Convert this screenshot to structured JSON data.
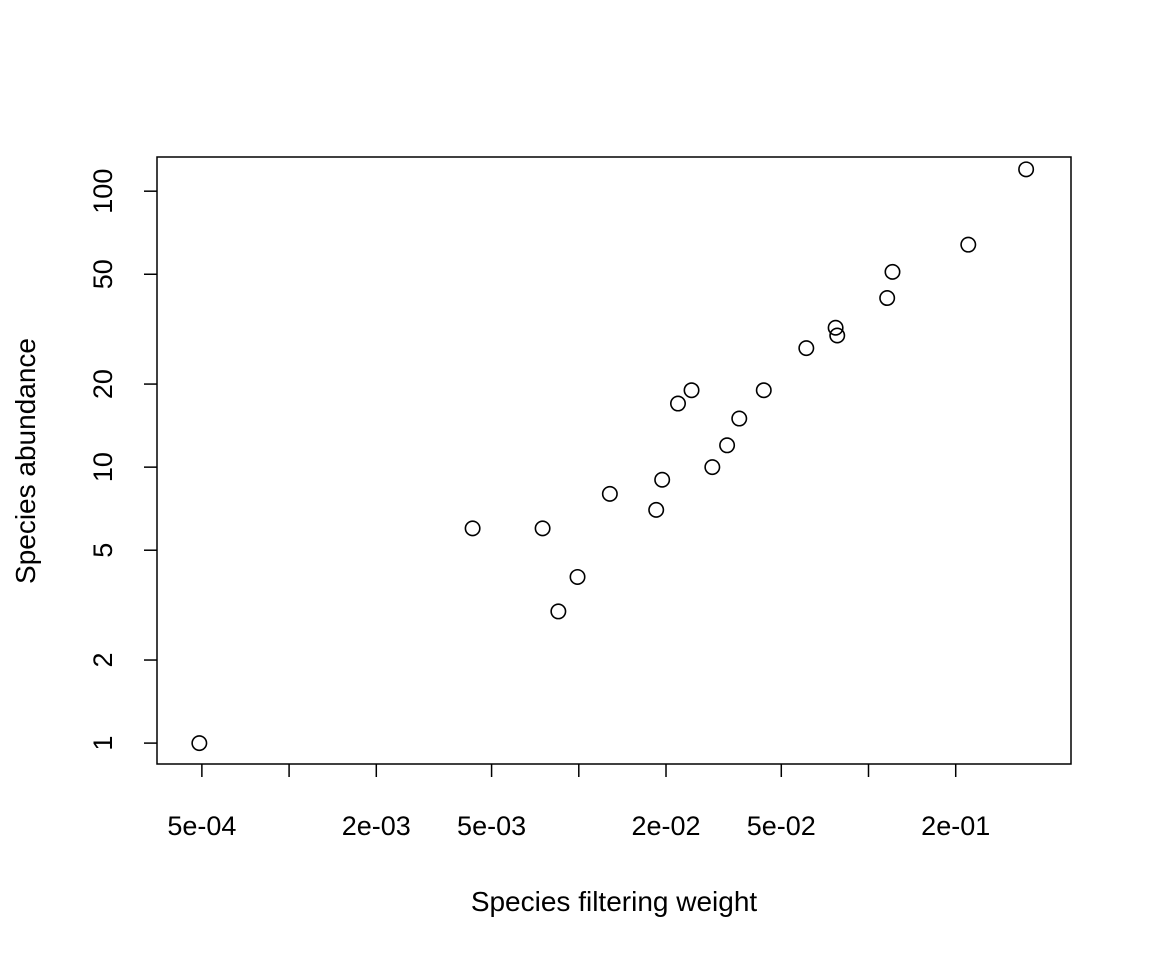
{
  "chart_data": {
    "type": "scatter",
    "title": "",
    "xlabel": "Species filtering weight",
    "ylabel": "Species abundance",
    "xscale": "log",
    "yscale": "log",
    "xlim": [
      0.00035,
      0.5
    ],
    "ylim": [
      0.84,
      133
    ],
    "grid": false,
    "legend": "none",
    "x_ticks": [
      {
        "value": 0.0005,
        "label": "5e-04"
      },
      {
        "value": 0.001,
        "label": ""
      },
      {
        "value": 0.002,
        "label": "2e-03"
      },
      {
        "value": 0.005,
        "label": "5e-03"
      },
      {
        "value": 0.01,
        "label": ""
      },
      {
        "value": 0.02,
        "label": "2e-02"
      },
      {
        "value": 0.05,
        "label": "5e-02"
      },
      {
        "value": 0.1,
        "label": ""
      },
      {
        "value": 0.2,
        "label": "2e-01"
      }
    ],
    "y_ticks": [
      {
        "value": 1,
        "label": "1"
      },
      {
        "value": 2,
        "label": "2"
      },
      {
        "value": 5,
        "label": "5"
      },
      {
        "value": 10,
        "label": "10"
      },
      {
        "value": 20,
        "label": "20"
      },
      {
        "value": 50,
        "label": "50"
      },
      {
        "value": 100,
        "label": "100"
      }
    ],
    "marker": "open-circle",
    "marker_color": "#000000",
    "points": [
      {
        "x": 0.00049,
        "y": 1
      },
      {
        "x": 0.0043,
        "y": 6
      },
      {
        "x": 0.0075,
        "y": 6
      },
      {
        "x": 0.0085,
        "y": 3
      },
      {
        "x": 0.0099,
        "y": 4
      },
      {
        "x": 0.0128,
        "y": 8
      },
      {
        "x": 0.0185,
        "y": 7
      },
      {
        "x": 0.0194,
        "y": 9
      },
      {
        "x": 0.022,
        "y": 17
      },
      {
        "x": 0.0245,
        "y": 19
      },
      {
        "x": 0.0289,
        "y": 10
      },
      {
        "x": 0.0325,
        "y": 12
      },
      {
        "x": 0.0358,
        "y": 15
      },
      {
        "x": 0.0435,
        "y": 19
      },
      {
        "x": 0.061,
        "y": 27
      },
      {
        "x": 0.077,
        "y": 32
      },
      {
        "x": 0.078,
        "y": 30
      },
      {
        "x": 0.116,
        "y": 41
      },
      {
        "x": 0.121,
        "y": 51
      },
      {
        "x": 0.221,
        "y": 64
      },
      {
        "x": 0.35,
        "y": 120
      }
    ]
  }
}
